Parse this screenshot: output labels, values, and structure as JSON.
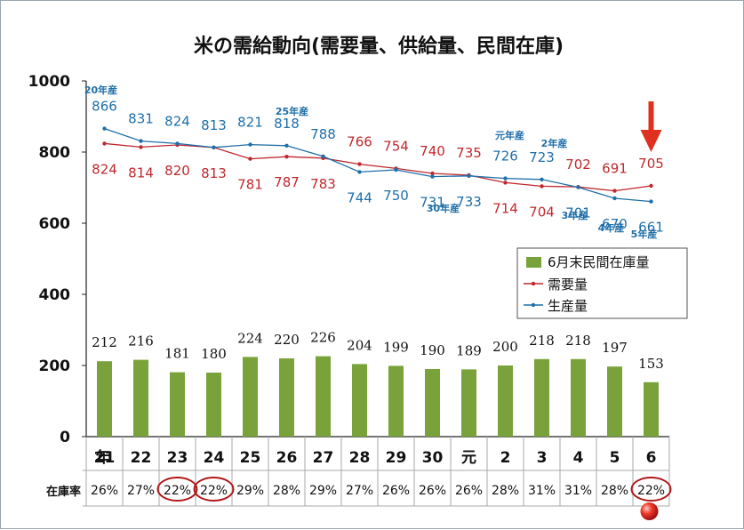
{
  "chart_data": {
    "type": "bar+line",
    "title": "米の需給動向(需要量、供給量、民間在庫)",
    "categories": [
      "21",
      "22",
      "23",
      "24",
      "25",
      "26",
      "27",
      "28",
      "29",
      "30",
      "元",
      "2",
      "3",
      "4",
      "5",
      "6"
    ],
    "x_row_label": "年",
    "ylim": [
      0,
      1000
    ],
    "yticks": [
      "0",
      "200",
      "400",
      "600",
      "800",
      "1000"
    ],
    "legend": {
      "placement": "right",
      "entries": [
        "6月末民間在庫量",
        "需要量",
        "生産量"
      ]
    },
    "series": [
      {
        "name": "6月末民間在庫量",
        "type": "bar",
        "color": "#7aa23a",
        "values": [
          212,
          216,
          181,
          180,
          224,
          220,
          226,
          204,
          199,
          190,
          189,
          200,
          218,
          218,
          197,
          153
        ]
      },
      {
        "name": "需要量",
        "type": "line",
        "color": "#c0282d",
        "values": [
          824,
          814,
          820,
          813,
          781,
          787,
          783,
          766,
          754,
          740,
          735,
          714,
          704,
          702,
          691,
          705
        ]
      },
      {
        "name": "生産量",
        "type": "line",
        "color": "#1f6fa8",
        "values": [
          866,
          831,
          824,
          813,
          821,
          818,
          788,
          744,
          750,
          731,
          733,
          726,
          723,
          701,
          670,
          661
        ]
      }
    ],
    "stock_rate": {
      "label": "在庫率",
      "values": [
        "26%",
        "27%",
        "22%",
        "22%",
        "29%",
        "28%",
        "29%",
        "27%",
        "26%",
        "26%",
        "26%",
        "28%",
        "31%",
        "31%",
        "28%",
        "22%"
      ],
      "circled": [
        2,
        3,
        15
      ]
    },
    "annotations": [
      {
        "text": "20年産"
      },
      {
        "text": "25年産"
      },
      {
        "text": "30年産"
      },
      {
        "text": "元年産"
      },
      {
        "text": "2年産"
      },
      {
        "text": "3年産"
      },
      {
        "text": "4年産"
      },
      {
        "text": "5年産"
      }
    ],
    "colors": {
      "axis": "#222222",
      "table_line": "#aaaaaa",
      "annotation": "#1f6fa8",
      "arrow": "#e03020",
      "circle": "#b01818"
    }
  }
}
